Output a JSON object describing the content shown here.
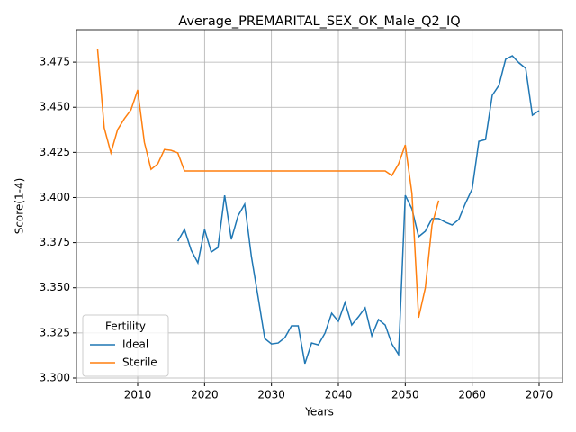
{
  "chart_data": {
    "type": "line",
    "title": "Average_PREMARITAL_SEX_OK_Male_Q2_IQ",
    "xlabel": "Years",
    "ylabel": "Score(1-4)",
    "x": [
      2004,
      2005,
      2006,
      2007,
      2008,
      2009,
      2010,
      2011,
      2012,
      2013,
      2014,
      2015,
      2016,
      2017,
      2018,
      2019,
      2020,
      2021,
      2022,
      2023,
      2024,
      2025,
      2026,
      2027,
      2028,
      2029,
      2030,
      2031,
      2032,
      2033,
      2034,
      2035,
      2036,
      2037,
      2038,
      2039,
      2040,
      2041,
      2042,
      2043,
      2044,
      2045,
      2046,
      2047,
      2048,
      2049,
      2050,
      2051,
      2052,
      2053,
      2054,
      2055,
      2056,
      2057,
      2058,
      2059,
      2060,
      2061,
      2062,
      2063,
      2064,
      2065,
      2066,
      2067,
      2068,
      2069,
      2070
    ],
    "series": [
      {
        "name": "Ideal",
        "color": "#1f77b4",
        "values": [
          null,
          null,
          null,
          null,
          null,
          null,
          null,
          null,
          null,
          null,
          null,
          null,
          3.3758,
          3.3823,
          3.3708,
          3.3638,
          3.3823,
          3.3698,
          3.3723,
          3.4012,
          3.3768,
          3.3898,
          3.3963,
          3.3673,
          3.3449,
          3.3219,
          3.3189,
          3.3194,
          3.3224,
          3.3289,
          3.3289,
          3.308,
          3.3194,
          3.3184,
          3.3249,
          3.3359,
          3.3314,
          3.3419,
          3.3294,
          3.3339,
          3.3389,
          3.3234,
          3.3324,
          3.3294,
          3.3189,
          3.313,
          3.4012,
          3.3937,
          3.3783,
          3.3813,
          3.3883,
          3.3883,
          3.3863,
          3.3848,
          3.3878,
          3.3968,
          3.4047,
          3.4311,
          3.4321,
          3.4566,
          3.4621,
          3.4766,
          3.4785,
          3.4746,
          3.4716,
          3.4456,
          3.4481
        ]
      },
      {
        "name": "Sterile",
        "color": "#ff7f0e",
        "values": [
          3.4825,
          3.4386,
          3.4247,
          3.4376,
          3.4436,
          3.4486,
          3.4596,
          3.4306,
          3.4156,
          3.4186,
          3.4266,
          3.4261,
          3.4247,
          3.4147,
          3.4147,
          3.4147,
          3.4147,
          3.4147,
          3.4147,
          3.4147,
          3.4147,
          3.4147,
          3.4147,
          3.4147,
          3.4147,
          3.4147,
          3.4147,
          3.4147,
          3.4147,
          3.4147,
          3.4147,
          3.4147,
          3.4147,
          3.4147,
          3.4147,
          3.4147,
          3.4147,
          3.4147,
          3.4147,
          3.4147,
          3.4147,
          3.4147,
          3.4147,
          3.4147,
          3.4122,
          3.4186,
          3.4291,
          3.4022,
          3.3334,
          3.3499,
          3.3848,
          3.3983,
          null,
          null,
          null,
          null,
          null,
          null,
          null,
          null,
          null,
          null,
          null,
          null,
          null,
          null,
          null
        ]
      }
    ],
    "xlim": [
      2000.85,
      2073.5
    ],
    "ylim": [
      3.2975,
      3.493
    ],
    "xticks": [
      2010,
      2020,
      2030,
      2040,
      2050,
      2060,
      2070
    ],
    "yticks": [
      {
        "value": 3.3,
        "label": "3.300"
      },
      {
        "value": 3.325,
        "label": "3.325"
      },
      {
        "value": 3.35,
        "label": "3.350"
      },
      {
        "value": 3.375,
        "label": "3.375"
      },
      {
        "value": 3.4,
        "label": "3.400"
      },
      {
        "value": 3.425,
        "label": "3.425"
      },
      {
        "value": 3.45,
        "label": "3.450"
      },
      {
        "value": 3.475,
        "label": "3.475"
      }
    ],
    "grid": true,
    "legend_title": "Fertility",
    "legend_position": "lower left"
  }
}
